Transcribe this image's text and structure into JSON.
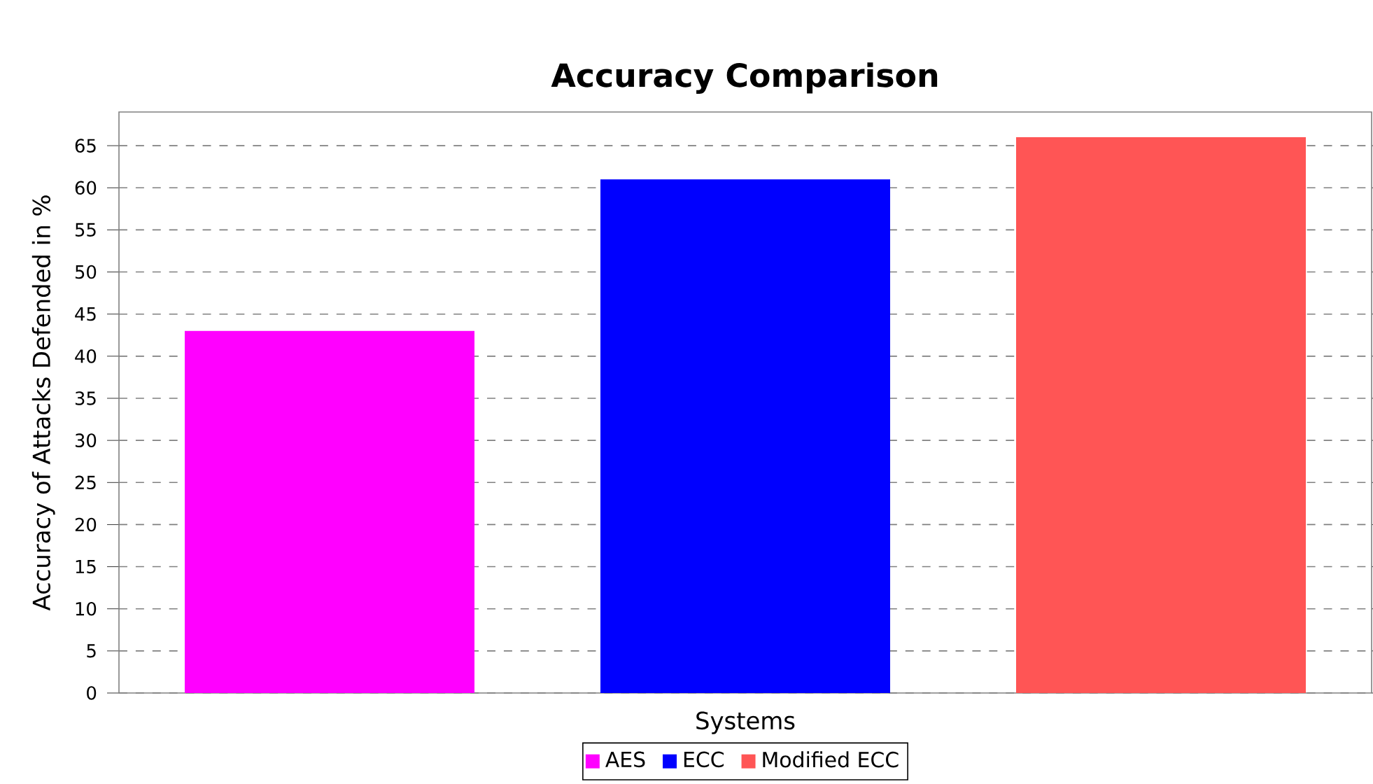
{
  "chart_data": {
    "type": "bar",
    "title": "Accuracy Comparison",
    "xlabel": "Systems",
    "ylabel": "Accuracy of Attacks Defended in %",
    "categories": [
      null
    ],
    "series": [
      {
        "name": "AES",
        "color": "#ff00ff",
        "values": [
          43
        ]
      },
      {
        "name": "ECC",
        "color": "#0000ff",
        "values": [
          61
        ]
      },
      {
        "name": "Modified ECC",
        "color": "#ff5555",
        "values": [
          66
        ]
      }
    ],
    "ylim": [
      0,
      69
    ],
    "yticks": [
      0,
      5,
      10,
      15,
      20,
      25,
      30,
      35,
      40,
      45,
      50,
      55,
      60,
      65
    ],
    "grid": "y",
    "legend": "bottom"
  }
}
